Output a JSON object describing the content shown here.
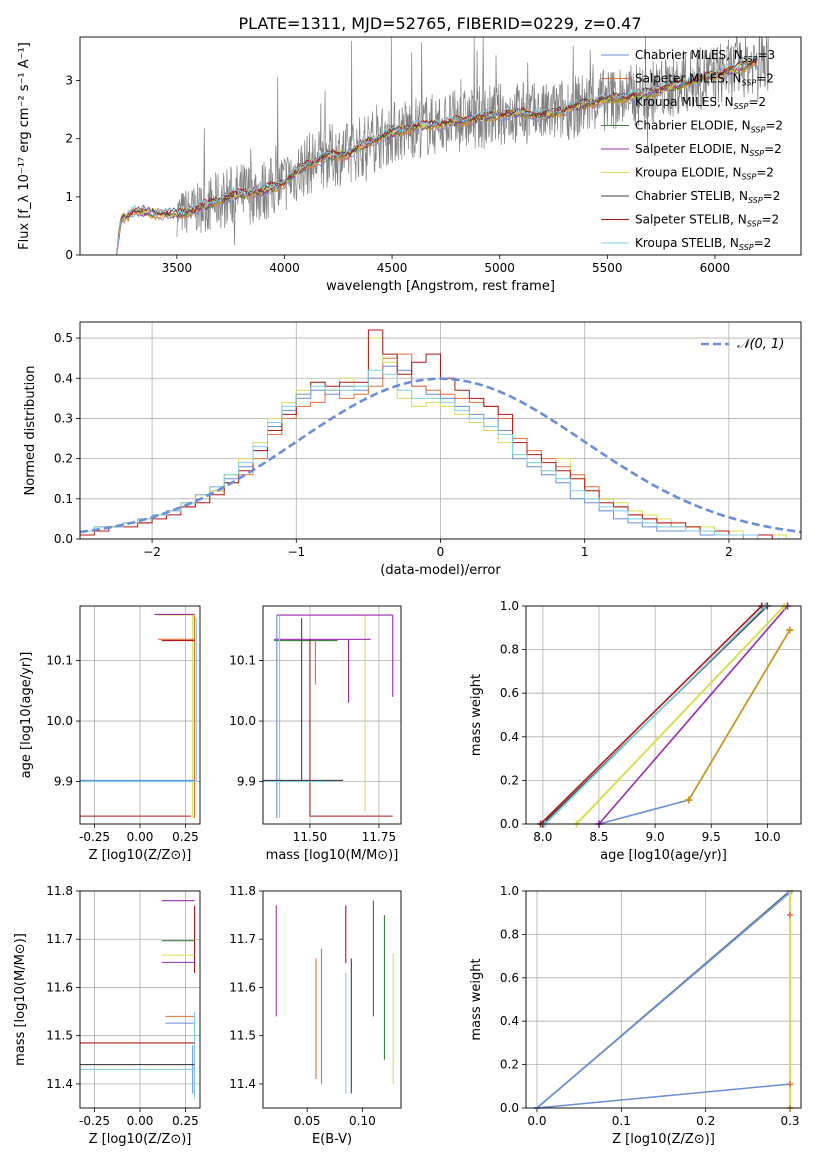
{
  "colors": {
    "Chabrier MILES": "#6a8ed8",
    "Salpeter MILES": "#e8703a",
    "Kroupa MILES": "#c79a1a",
    "Chabrier ELODIE": "#3f7f3f",
    "Salpeter ELODIE": "#9a2bb0",
    "Kroupa ELODIE": "#d6e055",
    "Chabrier STELIB": "#444444",
    "Salpeter STELIB": "#b01818",
    "Kroupa STELIB": "#7fd0e0",
    "data": "#808080",
    "normal": "#6a8ed8"
  },
  "chart_data": [
    {
      "type": "line",
      "title": "PLATE=1311, MJD=52765, FIBERID=0229, z=0.47",
      "xlabel": "wavelength [Angstrom, rest frame]",
      "ylabel": "Flux [f_λ 10⁻¹⁷ erg cm⁻² s⁻¹ A⁻¹]",
      "xlim": [
        3050,
        6400
      ],
      "ylim": [
        0,
        3.75
      ],
      "xticks": [
        "3500",
        "4000",
        "4500",
        "5000",
        "5500",
        "6000"
      ],
      "yticks": [
        "0",
        "1",
        "2",
        "3"
      ],
      "grid": false,
      "legend_placement": "top-right",
      "legend": [
        {
          "model": "Chabrier MILES",
          "label": "Chabrier MILES, N",
          "sub": "SSP",
          "tail": "=3"
        },
        {
          "model": "Salpeter MILES",
          "label": "Salpeter MILES, N",
          "sub": "SSP",
          "tail": "=2"
        },
        {
          "model": "Kroupa MILES",
          "label": "Kroupa MILES, N",
          "sub": "SSP",
          "tail": "=2"
        },
        {
          "model": "Chabrier ELODIE",
          "label": "Chabrier ELODIE, N",
          "sub": "SSP",
          "tail": "=2"
        },
        {
          "model": "Salpeter ELODIE",
          "label": "Salpeter ELODIE, N",
          "sub": "SSP",
          "tail": "=2"
        },
        {
          "model": "Kroupa ELODIE",
          "label": "Kroupa ELODIE, N",
          "sub": "SSP",
          "tail": "=2"
        },
        {
          "model": "Chabrier STELIB",
          "label": "Chabrier STELIB, N",
          "sub": "SSP",
          "tail": "=2"
        },
        {
          "model": "Salpeter STELIB",
          "label": "Salpeter STELIB, N",
          "sub": "SSP",
          "tail": "=2"
        },
        {
          "model": "Kroupa STELIB",
          "label": "Kroupa STELIB, N",
          "sub": "SSP",
          "tail": "=2"
        }
      ],
      "continuum_anchors": [
        [
          3220,
          0
        ],
        [
          3240,
          0.62
        ],
        [
          3300,
          0.75
        ],
        [
          3400,
          0.72
        ],
        [
          3500,
          0.7
        ],
        [
          3600,
          0.8
        ],
        [
          3700,
          0.95
        ],
        [
          3800,
          1.05
        ],
        [
          3900,
          1.1
        ],
        [
          4000,
          1.25
        ],
        [
          4100,
          1.55
        ],
        [
          4200,
          1.7
        ],
        [
          4300,
          1.75
        ],
        [
          4400,
          1.95
        ],
        [
          4500,
          2.1
        ],
        [
          4600,
          2.2
        ],
        [
          4700,
          2.25
        ],
        [
          4800,
          2.3
        ],
        [
          4900,
          2.35
        ],
        [
          5000,
          2.42
        ],
        [
          5100,
          2.45
        ],
        [
          5200,
          2.4
        ],
        [
          5300,
          2.5
        ],
        [
          5400,
          2.6
        ],
        [
          5500,
          2.68
        ],
        [
          5600,
          2.72
        ],
        [
          5700,
          2.8
        ],
        [
          5800,
          2.9
        ],
        [
          5900,
          3.0
        ],
        [
          6000,
          3.1
        ],
        [
          6100,
          3.2
        ],
        [
          6200,
          3.35
        ]
      ],
      "data_range": [
        3500,
        6250
      ],
      "note_model_range": [
        3220,
        6200
      ]
    },
    {
      "type": "bar",
      "xlabel": "(data-model)/error",
      "ylabel": "Normed distribution",
      "xlim": [
        -2.5,
        2.5
      ],
      "ylim": [
        0,
        0.54
      ],
      "xticks": [
        "−2",
        "−1",
        "0",
        "1",
        "2"
      ],
      "yticks": [
        "0.0",
        "0.1",
        "0.2",
        "0.3",
        "0.4",
        "0.5"
      ],
      "grid": true,
      "bin_width": 0.1,
      "series": [
        {
          "model": "Chabrier MILES",
          "values": [
            0.02,
            0.03,
            0.03,
            0.04,
            0.05,
            0.06,
            0.07,
            0.09,
            0.1,
            0.13,
            0.15,
            0.18,
            0.22,
            0.28,
            0.32,
            0.35,
            0.37,
            0.36,
            0.38,
            0.37,
            0.4,
            0.43,
            0.42,
            0.38,
            0.36,
            0.35,
            0.33,
            0.31,
            0.3,
            0.27,
            0.2,
            0.18,
            0.16,
            0.14,
            0.1,
            0.09,
            0.07,
            0.05,
            0.04,
            0.03,
            0.02,
            0.02,
            0.02,
            0.01,
            0.01,
            0.01,
            0.0,
            0.0,
            0.0,
            0.0
          ]
        },
        {
          "model": "Salpeter MILES",
          "values": [
            0.02,
            0.03,
            0.03,
            0.04,
            0.04,
            0.06,
            0.07,
            0.08,
            0.11,
            0.12,
            0.14,
            0.16,
            0.2,
            0.26,
            0.3,
            0.33,
            0.34,
            0.37,
            0.35,
            0.36,
            0.38,
            0.45,
            0.46,
            0.38,
            0.37,
            0.36,
            0.35,
            0.34,
            0.33,
            0.3,
            0.25,
            0.22,
            0.2,
            0.18,
            0.16,
            0.13,
            0.1,
            0.08,
            0.06,
            0.05,
            0.04,
            0.03,
            0.03,
            0.02,
            0.02,
            0.01,
            0.01,
            0.01,
            0.0,
            0.0
          ]
        },
        {
          "model": "Kroupa ELODIE",
          "values": [
            0.02,
            0.02,
            0.03,
            0.04,
            0.05,
            0.06,
            0.07,
            0.09,
            0.1,
            0.12,
            0.16,
            0.2,
            0.24,
            0.3,
            0.34,
            0.37,
            0.39,
            0.37,
            0.4,
            0.38,
            0.5,
            0.44,
            0.35,
            0.33,
            0.34,
            0.33,
            0.31,
            0.29,
            0.27,
            0.24,
            0.21,
            0.19,
            0.17,
            0.2,
            0.15,
            0.12,
            0.1,
            0.09,
            0.07,
            0.06,
            0.05,
            0.04,
            0.03,
            0.03,
            0.02,
            0.02,
            0.01,
            0.01,
            0.01,
            0.0
          ]
        },
        {
          "model": "Salpeter STELIB",
          "values": [
            0.01,
            0.02,
            0.03,
            0.03,
            0.04,
            0.05,
            0.06,
            0.08,
            0.09,
            0.11,
            0.14,
            0.17,
            0.22,
            0.27,
            0.31,
            0.36,
            0.39,
            0.38,
            0.39,
            0.39,
            0.52,
            0.46,
            0.41,
            0.44,
            0.46,
            0.4,
            0.37,
            0.35,
            0.33,
            0.31,
            0.24,
            0.21,
            0.19,
            0.17,
            0.15,
            0.12,
            0.09,
            0.08,
            0.06,
            0.05,
            0.04,
            0.04,
            0.03,
            0.02,
            0.02,
            0.01,
            0.01,
            0.01,
            0.0,
            0.0
          ]
        },
        {
          "model": "Kroupa STELIB",
          "values": [
            0.02,
            0.03,
            0.03,
            0.04,
            0.05,
            0.06,
            0.07,
            0.09,
            0.11,
            0.13,
            0.16,
            0.19,
            0.23,
            0.29,
            0.33,
            0.36,
            0.38,
            0.37,
            0.37,
            0.38,
            0.42,
            0.41,
            0.37,
            0.35,
            0.35,
            0.34,
            0.32,
            0.3,
            0.28,
            0.26,
            0.21,
            0.19,
            0.17,
            0.15,
            0.12,
            0.1,
            0.08,
            0.07,
            0.05,
            0.04,
            0.03,
            0.03,
            0.02,
            0.02,
            0.01,
            0.01,
            0.01,
            0.0,
            0.0,
            0.0
          ]
        }
      ],
      "normal": {
        "label": "𝒩(0, 1)",
        "mu": 0,
        "sigma": 1
      }
    },
    {
      "type": "scatter",
      "xlabel": "Z [log10(Z/Z⊙)]",
      "ylabel": "age  [log10(age/yr)]",
      "xlim": [
        -0.33,
        0.33
      ],
      "ylim": [
        9.83,
        10.19
      ],
      "xticks": [
        [
          "-0.25",
          -0.25
        ],
        [
          "0.00",
          0
        ],
        [
          "0.25",
          0.25
        ]
      ],
      "yticks": [
        [
          "9.9",
          9.9
        ],
        [
          "10.0",
          10.0
        ],
        [
          "10.1",
          10.1
        ]
      ],
      "grid": true
    },
    {
      "type": "scatter",
      "xlabel": "mass [log10(M/M⊙)]",
      "ylabel": "",
      "xlim": [
        11.33,
        11.83
      ],
      "ylim": [
        9.83,
        10.19
      ],
      "xticks": [
        [
          "11.50",
          11.5
        ],
        [
          "11.75",
          11.75
        ]
      ],
      "yticks": [
        [
          "9.9",
          9.9
        ],
        [
          "10.0",
          10.0
        ],
        [
          "10.1",
          10.1
        ]
      ],
      "grid": true
    },
    {
      "type": "line",
      "xlabel": "age  [log10(age/yr)]",
      "ylabel": "mass weight",
      "xlim": [
        7.85,
        10.3
      ],
      "ylim": [
        0,
        1.0
      ],
      "xticks": [
        [
          "8.0",
          8
        ],
        [
          "8.5",
          8.5
        ],
        [
          "9.0",
          9
        ],
        [
          "9.5",
          9.5
        ],
        [
          "10.0",
          10
        ]
      ],
      "yticks": [
        [
          "0.0",
          0
        ],
        [
          "0.2",
          0.2
        ],
        [
          "0.4",
          0.4
        ],
        [
          "0.6",
          0.6
        ],
        [
          "0.8",
          0.8
        ],
        [
          "1.0",
          1.0
        ]
      ],
      "grid": true,
      "series": [
        {
          "model": "Chabrier MILES",
          "x": [
            8.5,
            9.3
          ],
          "y": [
            0.0,
            0.11
          ]
        },
        {
          "model": "Salpeter MILES",
          "x": [
            9.3,
            10.2
          ],
          "y": [
            0.11,
            0.89
          ]
        },
        {
          "model": "Kroupa MILES",
          "x": [
            9.3,
            10.2
          ],
          "y": [
            0.11,
            0.89
          ]
        },
        {
          "model": "Salpeter ELODIE",
          "x": [
            8.5,
            10.18
          ],
          "y": [
            0.0,
            1.0
          ]
        },
        {
          "model": "Kroupa ELODIE",
          "x": [
            8.3,
            10.15
          ],
          "y": [
            0.0,
            1.0
          ]
        },
        {
          "model": "Chabrier STELIB",
          "x": [
            8.0,
            10.0
          ],
          "y": [
            0.0,
            1.0
          ]
        },
        {
          "model": "Salpeter STELIB",
          "x": [
            7.98,
            9.95
          ],
          "y": [
            0.0,
            1.0
          ]
        },
        {
          "model": "Kroupa STELIB",
          "x": [
            8.02,
            9.98
          ],
          "y": [
            0.0,
            1.0
          ]
        }
      ]
    },
    {
      "type": "scatter",
      "xlabel": "Z [log10(Z/Z⊙)]",
      "ylabel": "mass [log10(M/M⊙)]",
      "xlim": [
        -0.33,
        0.33
      ],
      "ylim": [
        11.35,
        11.8
      ],
      "xticks": [
        [
          "-0.25",
          -0.25
        ],
        [
          "0.00",
          0
        ],
        [
          "0.25",
          0.25
        ]
      ],
      "yticks": [
        [
          "11.4",
          11.4
        ],
        [
          "11.5",
          11.5
        ],
        [
          "11.6",
          11.6
        ],
        [
          "11.7",
          11.7
        ],
        [
          "11.8",
          11.8
        ]
      ],
      "grid": true
    },
    {
      "type": "scatter",
      "xlabel": "E(B-V)",
      "ylabel": "",
      "xlim": [
        0.01,
        0.135
      ],
      "ylim": [
        11.35,
        11.8
      ],
      "xticks": [
        [
          "0.05",
          0.05
        ],
        [
          "0.10",
          0.1
        ]
      ],
      "yticks": [
        [
          "11.4",
          11.4
        ],
        [
          "11.5",
          11.5
        ],
        [
          "11.6",
          11.6
        ],
        [
          "11.7",
          11.7
        ],
        [
          "11.8",
          11.8
        ]
      ],
      "grid": false,
      "points": [
        {
          "model": "Salpeter ELODIE",
          "x": 0.022,
          "y": [
            11.54,
            11.77
          ]
        },
        {
          "model": "Salpeter MILES",
          "x": 0.058,
          "y": [
            11.41,
            11.66
          ]
        },
        {
          "model": "Chabrier MILES",
          "x": 0.063,
          "y": [
            11.4,
            11.68
          ]
        },
        {
          "model": "Kroupa STELIB",
          "x": 0.085,
          "y": [
            11.38,
            11.63
          ]
        },
        {
          "model": "Salpeter STELIB",
          "x": 0.085,
          "y": [
            11.65,
            11.77
          ]
        },
        {
          "model": "Chabrier STELIB",
          "x": 0.09,
          "y": [
            11.38,
            11.66
          ]
        },
        {
          "model": "Salpeter ELODIE",
          "x": 0.11,
          "y": [
            11.54,
            11.78
          ]
        },
        {
          "model": "Chabrier ELODIE",
          "x": 0.12,
          "y": [
            11.45,
            11.75
          ]
        },
        {
          "model": "Kroupa ELODIE",
          "x": 0.128,
          "y": [
            11.4,
            11.67
          ]
        }
      ]
    },
    {
      "type": "line",
      "xlabel": "Z [log10(Z/Z⊙)]",
      "ylabel": "mass weight",
      "xlim": [
        -0.013,
        0.313
      ],
      "ylim": [
        0,
        1.0
      ],
      "xticks": [
        [
          "0.0",
          0
        ],
        [
          "0.1",
          0.1
        ],
        [
          "0.2",
          0.2
        ],
        [
          "0.3",
          0.3
        ]
      ],
      "yticks": [
        [
          "0.0",
          0
        ],
        [
          "0.2",
          0.2
        ],
        [
          "0.4",
          0.4
        ],
        [
          "0.6",
          0.6
        ],
        [
          "0.8",
          0.8
        ],
        [
          "1.0",
          1.0
        ]
      ],
      "grid": true,
      "series": [
        {
          "model": "Chabrier MILES",
          "x": [
            0.0,
            0.3
          ],
          "y": [
            0.0,
            0.11
          ]
        },
        {
          "model": "Chabrier STELIB",
          "x": [
            0.0,
            0.3
          ],
          "y": [
            0.0,
            1.0
          ]
        },
        {
          "model": "Kroupa STELIB",
          "x": [
            0.0,
            0.3
          ],
          "y": [
            0.0,
            0.995
          ]
        },
        {
          "model": "Chabrier MILES",
          "x": [
            0.0,
            0.299
          ],
          "y": [
            0.0,
            0.99
          ]
        },
        {
          "model": "Kroupa ELODIE",
          "x": [
            0.3,
            0.3
          ],
          "y": [
            0.0,
            1.0
          ]
        }
      ]
    }
  ]
}
